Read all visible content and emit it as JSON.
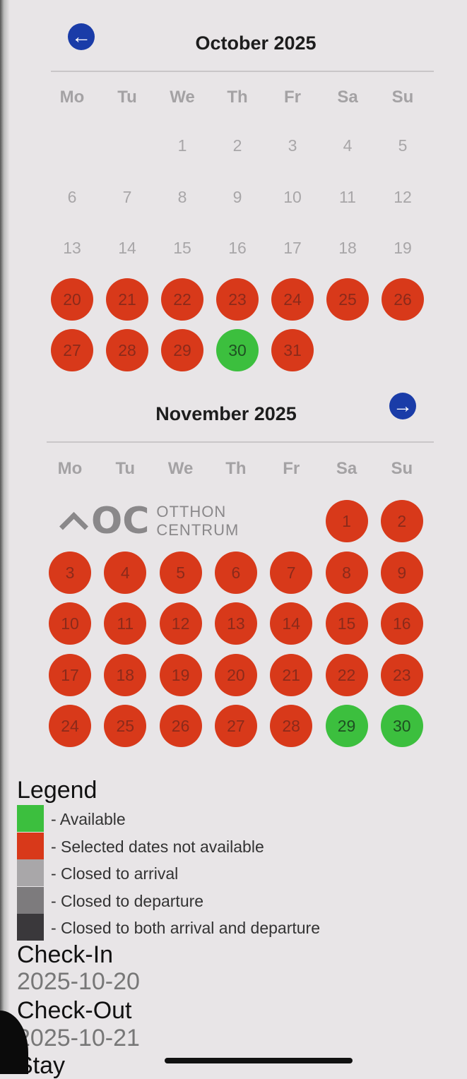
{
  "months": [
    {
      "title": "October 2025",
      "nav": "prev-arrow-icon",
      "weekdays": [
        "Mo",
        "Tu",
        "We",
        "Th",
        "Fr",
        "Sa",
        "Su"
      ],
      "first_weekday": 2,
      "days": [
        [
          "1",
          "plain"
        ],
        [
          "2",
          "plain"
        ],
        [
          "3",
          "plain"
        ],
        [
          "4",
          "plain"
        ],
        [
          "5",
          "plain"
        ],
        [
          "6",
          "plain"
        ],
        [
          "7",
          "plain"
        ],
        [
          "8",
          "plain"
        ],
        [
          "9",
          "plain"
        ],
        [
          "10",
          "plain"
        ],
        [
          "11",
          "plain"
        ],
        [
          "12",
          "plain"
        ],
        [
          "13",
          "plain"
        ],
        [
          "14",
          "plain"
        ],
        [
          "15",
          "plain"
        ],
        [
          "16",
          "plain"
        ],
        [
          "17",
          "plain"
        ],
        [
          "18",
          "plain"
        ],
        [
          "19",
          "plain"
        ],
        [
          "20",
          "red"
        ],
        [
          "21",
          "red"
        ],
        [
          "22",
          "red"
        ],
        [
          "23",
          "red"
        ],
        [
          "24",
          "red"
        ],
        [
          "25",
          "red"
        ],
        [
          "26",
          "red"
        ],
        [
          "27",
          "red"
        ],
        [
          "28",
          "red"
        ],
        [
          "29",
          "red"
        ],
        [
          "30",
          "green"
        ],
        [
          "31",
          "red"
        ]
      ]
    },
    {
      "title": "November 2025",
      "nav": "next-arrow-icon",
      "weekdays": [
        "Mo",
        "Tu",
        "We",
        "Th",
        "Fr",
        "Sa",
        "Su"
      ],
      "first_weekday": 5,
      "days": [
        [
          "1",
          "red"
        ],
        [
          "2",
          "red"
        ],
        [
          "3",
          "red"
        ],
        [
          "4",
          "red"
        ],
        [
          "5",
          "red"
        ],
        [
          "6",
          "red"
        ],
        [
          "7",
          "red"
        ],
        [
          "8",
          "red"
        ],
        [
          "9",
          "red"
        ],
        [
          "10",
          "red"
        ],
        [
          "11",
          "red"
        ],
        [
          "12",
          "red"
        ],
        [
          "13",
          "red"
        ],
        [
          "14",
          "red"
        ],
        [
          "15",
          "red"
        ],
        [
          "16",
          "red"
        ],
        [
          "17",
          "red"
        ],
        [
          "18",
          "red"
        ],
        [
          "19",
          "red"
        ],
        [
          "20",
          "red"
        ],
        [
          "21",
          "red"
        ],
        [
          "22",
          "red"
        ],
        [
          "23",
          "red"
        ],
        [
          "24",
          "red"
        ],
        [
          "25",
          "red"
        ],
        [
          "26",
          "red"
        ],
        [
          "27",
          "red"
        ],
        [
          "28",
          "red"
        ],
        [
          "29",
          "green"
        ],
        [
          "30",
          "green"
        ]
      ]
    }
  ],
  "watermark": {
    "mark": "OC",
    "line1": "OTTHON",
    "line2": "CENTRUM"
  },
  "legend": {
    "title": "Legend",
    "items": [
      {
        "label": "- Available",
        "color": "#3cbf3e"
      },
      {
        "label": "- Selected dates not available",
        "color": "#d8391a"
      },
      {
        "label": "- Closed to arrival",
        "color": "#a9a7a9"
      },
      {
        "label": "- Closed to departure",
        "color": "#7d7b7d"
      },
      {
        "label": "- Closed to both arrival and departure",
        "color": "#3a383b"
      }
    ]
  },
  "checkin": {
    "label": "Check-In",
    "value": "2025-10-20"
  },
  "checkout": {
    "label": "Check-Out",
    "value": "2025-10-21"
  },
  "stay": {
    "label": "Stay"
  }
}
